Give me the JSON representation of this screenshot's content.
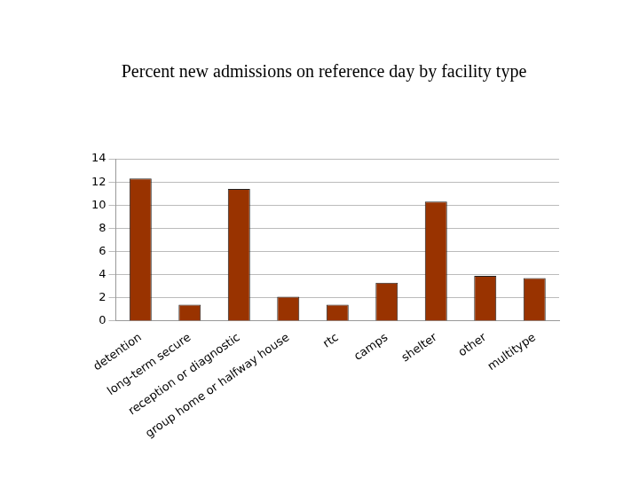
{
  "chart_data": {
    "type": "bar",
    "title": "Percent new admissions on reference day by facility type",
    "categories": [
      "detention",
      "long-term secure",
      "reception or diagnostic",
      "group home or halfway house",
      "rtc",
      "camps",
      "shelter",
      "other",
      "multitype"
    ],
    "values": [
      12.3,
      1.4,
      11.4,
      2.1,
      1.4,
      3.3,
      10.3,
      3.9,
      3.7
    ],
    "color": "#993300",
    "ylim": [
      0,
      14
    ],
    "yticks": [
      0,
      2,
      4,
      6,
      8,
      10,
      12,
      14
    ],
    "grid": true
  }
}
